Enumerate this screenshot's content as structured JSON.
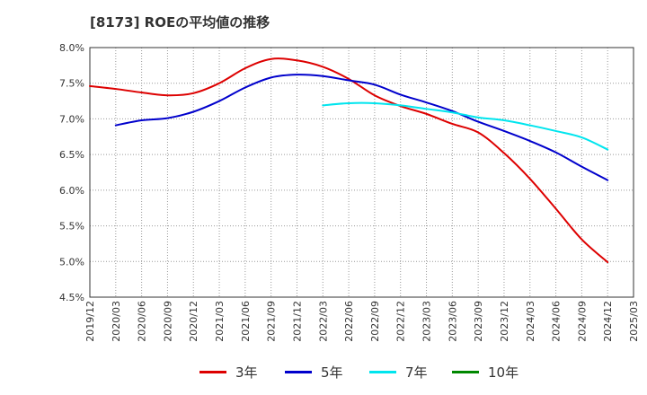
{
  "chart_data": {
    "type": "line",
    "title": "[8173]  ROEの平均値の推移",
    "xlabel": "",
    "ylabel": "",
    "ylim": [
      4.5,
      8.0
    ],
    "grid": true,
    "legend_position": "bottom",
    "y_ticks": [
      "4.5%",
      "5.0%",
      "5.5%",
      "6.0%",
      "6.5%",
      "7.0%",
      "7.5%",
      "8.0%"
    ],
    "x_ticks": [
      "2019/12",
      "2020/03",
      "2020/06",
      "2020/09",
      "2020/12",
      "2021/03",
      "2021/06",
      "2021/09",
      "2021/12",
      "2022/03",
      "2022/06",
      "2022/09",
      "2022/12",
      "2023/03",
      "2023/06",
      "2023/09",
      "2023/12",
      "2024/03",
      "2024/06",
      "2024/09",
      "2024/12",
      "2025/03"
    ],
    "series": [
      {
        "name": "3年",
        "color": "#dd0000",
        "values": [
          7.46,
          7.42,
          7.37,
          7.33,
          7.36,
          7.5,
          7.71,
          7.84,
          7.82,
          7.73,
          7.56,
          7.33,
          7.18,
          7.07,
          6.93,
          6.81,
          6.52,
          6.16,
          5.74,
          5.31,
          4.99,
          null
        ]
      },
      {
        "name": "5年",
        "color": "#0000cc",
        "values": [
          null,
          6.91,
          6.98,
          7.01,
          7.1,
          7.25,
          7.44,
          7.58,
          7.62,
          7.6,
          7.54,
          7.48,
          7.34,
          7.23,
          7.11,
          6.96,
          6.83,
          6.69,
          6.53,
          6.33,
          6.14,
          null
        ]
      },
      {
        "name": "7年",
        "color": "#00e5ee",
        "values": [
          null,
          null,
          null,
          null,
          null,
          null,
          null,
          null,
          null,
          7.19,
          7.22,
          7.22,
          7.19,
          7.14,
          7.09,
          7.02,
          6.98,
          6.91,
          6.83,
          6.74,
          6.57,
          null
        ]
      },
      {
        "name": "10年",
        "color": "#008800",
        "values": [
          null,
          null,
          null,
          null,
          null,
          null,
          null,
          null,
          null,
          null,
          null,
          null,
          null,
          null,
          null,
          null,
          null,
          null,
          null,
          null,
          null,
          null
        ]
      }
    ]
  }
}
